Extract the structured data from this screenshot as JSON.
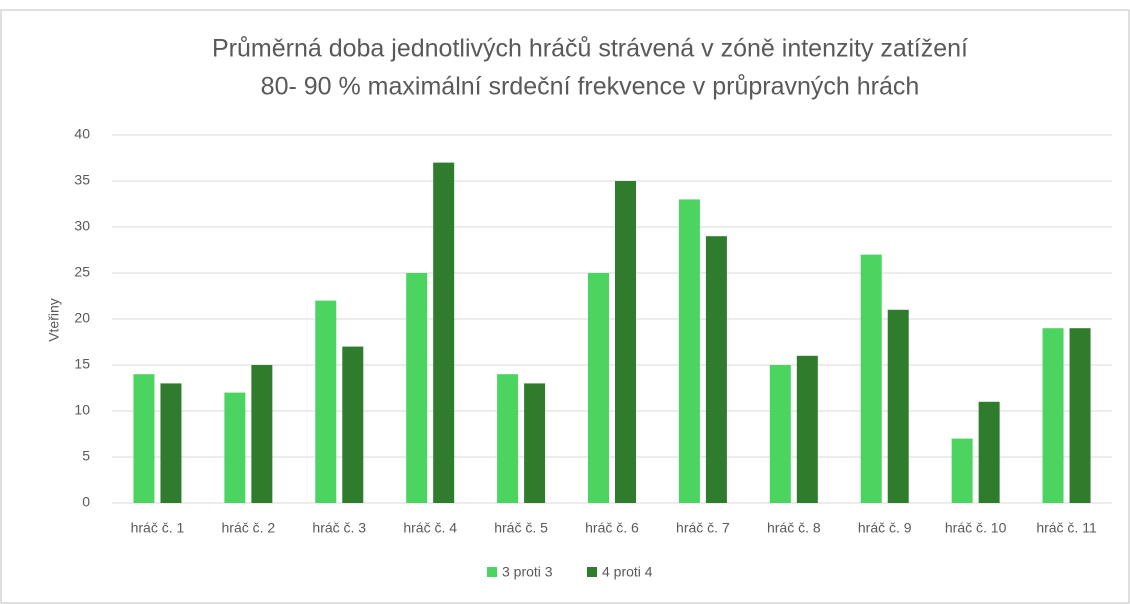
{
  "chart_data": {
    "type": "bar",
    "title": [
      "Průměrná doba jednotlivých hráčů strávená v zóně intenzity zatížení",
      "80- 90 % maximální srdeční frekvence v průpravných hrách"
    ],
    "y_label": "Vteřiny",
    "categories": [
      "hráč č. 1",
      "hráč č. 2",
      "hráč č. 3",
      "hráč č. 4",
      "hráč č. 5",
      "hráč č. 6",
      "hráč č. 7",
      "hráč č. 8",
      "hráč č. 9",
      "hráč č. 10",
      "hráč č. 11"
    ],
    "series": [
      {
        "name": "3 proti 3",
        "color": "#4cd460",
        "values": [
          14,
          12,
          22,
          25,
          14,
          25,
          33,
          15,
          27,
          7,
          19
        ]
      },
      {
        "name": "4 proti 4",
        "color": "#2f7d2c",
        "values": [
          13,
          15,
          17,
          37,
          13,
          35,
          29,
          16,
          21,
          11,
          19
        ]
      }
    ],
    "ylim": [
      0,
      40
    ],
    "yticks": [
      0,
      5,
      10,
      15,
      20,
      25,
      30,
      35,
      40
    ],
    "grid": true,
    "legend": "bottom"
  }
}
